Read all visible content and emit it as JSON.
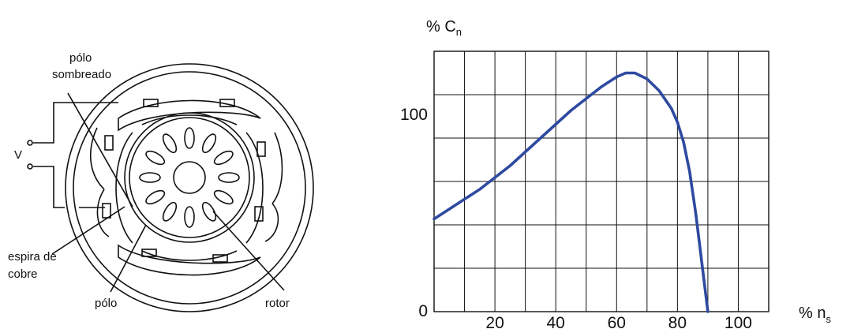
{
  "diagram": {
    "labels": {
      "shaded_pole": [
        "pólo",
        "sombreado"
      ],
      "voltage": "V",
      "copper_turn": [
        "espira de",
        "cobre"
      ],
      "pole": "pólo",
      "rotor": "rotor"
    }
  },
  "chart_data": {
    "type": "line",
    "ylabel": "% C",
    "ylabel_sub": "n",
    "xlabel": "% n",
    "xlabel_sub": "s",
    "xlim": [
      0,
      100
    ],
    "ylim": [
      0,
      125
    ],
    "x_ticks": [
      "20",
      "40",
      "60",
      "80",
      "100"
    ],
    "y_ticks": [
      "0",
      "100"
    ],
    "grid": true,
    "series": [
      {
        "color": "#2e4aa0",
        "x": [
          0,
          5,
          10,
          15,
          20,
          25,
          30,
          35,
          40,
          45,
          50,
          55,
          60,
          63,
          66,
          70,
          74,
          78,
          80,
          82,
          84,
          86,
          88,
          90
        ],
        "y": [
          47,
          52,
          57,
          62,
          68,
          74,
          81,
          88,
          95,
          102,
          108,
          114,
          119,
          121,
          121,
          118,
          112,
          103,
          96,
          86,
          71,
          50,
          25,
          0
        ]
      }
    ]
  }
}
